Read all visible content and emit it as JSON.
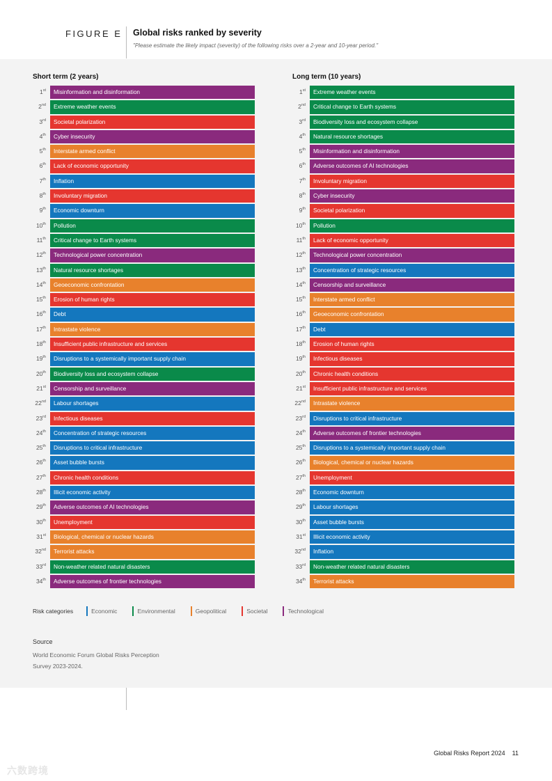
{
  "header": {
    "figure_label": "FIGURE E",
    "title": "Global risks ranked by severity",
    "subtitle": "\"Please estimate the likely impact (severity) of the following risks over a 2-year and 10-year period.\""
  },
  "colors": {
    "economic": "#1477be",
    "environmental": "#0a8a4a",
    "geopolitical": "#e8812c",
    "societal": "#e5362f",
    "technological": "#8a2a7d"
  },
  "short_term": {
    "title": "Short term (2 years)",
    "items": [
      {
        "rank": "1",
        "suffix": "st",
        "label": "Misinformation and disinformation",
        "category": "technological"
      },
      {
        "rank": "2",
        "suffix": "nd",
        "label": "Extreme weather events",
        "category": "environmental"
      },
      {
        "rank": "3",
        "suffix": "rd",
        "label": "Societal polarization",
        "category": "societal"
      },
      {
        "rank": "4",
        "suffix": "th",
        "label": "Cyber insecurity",
        "category": "technological"
      },
      {
        "rank": "5",
        "suffix": "th",
        "label": "Interstate armed conflict",
        "category": "geopolitical"
      },
      {
        "rank": "6",
        "suffix": "th",
        "label": "Lack of economic opportunity",
        "category": "societal"
      },
      {
        "rank": "7",
        "suffix": "th",
        "label": "Inflation",
        "category": "economic"
      },
      {
        "rank": "8",
        "suffix": "th",
        "label": "Involuntary migration",
        "category": "societal"
      },
      {
        "rank": "9",
        "suffix": "th",
        "label": "Economic downturn",
        "category": "economic"
      },
      {
        "rank": "10",
        "suffix": "th",
        "label": "Pollution",
        "category": "environmental"
      },
      {
        "rank": "11",
        "suffix": "th",
        "label": "Critical change to Earth systems",
        "category": "environmental"
      },
      {
        "rank": "12",
        "suffix": "th",
        "label": "Technological power concentration",
        "category": "technological"
      },
      {
        "rank": "13",
        "suffix": "th",
        "label": "Natural resource shortages",
        "category": "environmental"
      },
      {
        "rank": "14",
        "suffix": "th",
        "label": "Geoeconomic confrontation",
        "category": "geopolitical"
      },
      {
        "rank": "15",
        "suffix": "th",
        "label": "Erosion of human rights",
        "category": "societal"
      },
      {
        "rank": "16",
        "suffix": "th",
        "label": "Debt",
        "category": "economic"
      },
      {
        "rank": "17",
        "suffix": "th",
        "label": "Intrastate violence",
        "category": "geopolitical"
      },
      {
        "rank": "18",
        "suffix": "th",
        "label": "Insufficient public infrastructure and services",
        "category": "societal"
      },
      {
        "rank": "19",
        "suffix": "th",
        "label": "Disruptions to a systemically important supply chain",
        "category": "economic"
      },
      {
        "rank": "20",
        "suffix": "th",
        "label": "Biodiversity loss and ecosystem collapse",
        "category": "environmental"
      },
      {
        "rank": "21",
        "suffix": "st",
        "label": "Censorship and surveillance",
        "category": "technological"
      },
      {
        "rank": "22",
        "suffix": "nd",
        "label": "Labour shortages",
        "category": "economic"
      },
      {
        "rank": "23",
        "suffix": "rd",
        "label": "Infectious diseases",
        "category": "societal"
      },
      {
        "rank": "24",
        "suffix": "th",
        "label": "Concentration of strategic resources",
        "category": "economic"
      },
      {
        "rank": "25",
        "suffix": "th",
        "label": "Disruptions to critical infrastructure",
        "category": "economic"
      },
      {
        "rank": "26",
        "suffix": "th",
        "label": "Asset bubble bursts",
        "category": "economic"
      },
      {
        "rank": "27",
        "suffix": "th",
        "label": "Chronic health conditions",
        "category": "societal"
      },
      {
        "rank": "28",
        "suffix": "th",
        "label": "Illicit economic activity",
        "category": "economic"
      },
      {
        "rank": "29",
        "suffix": "th",
        "label": "Adverse outcomes of AI technologies",
        "category": "technological"
      },
      {
        "rank": "30",
        "suffix": "th",
        "label": "Unemployment",
        "category": "societal"
      },
      {
        "rank": "31",
        "suffix": "st",
        "label": "Biological, chemical or nuclear hazards",
        "category": "geopolitical"
      },
      {
        "rank": "32",
        "suffix": "nd",
        "label": "Terrorist attacks",
        "category": "geopolitical"
      },
      {
        "rank": "33",
        "suffix": "rd",
        "label": "Non-weather related natural disasters",
        "category": "environmental"
      },
      {
        "rank": "34",
        "suffix": "th",
        "label": "Adverse outcomes of frontier technologies",
        "category": "technological"
      }
    ]
  },
  "long_term": {
    "title": "Long term (10 years)",
    "items": [
      {
        "rank": "1",
        "suffix": "st",
        "label": "Extreme weather events",
        "category": "environmental"
      },
      {
        "rank": "2",
        "suffix": "nd",
        "label": "Critical change to Earth systems",
        "category": "environmental"
      },
      {
        "rank": "3",
        "suffix": "rd",
        "label": "Biodiversity loss and ecosystem collapse",
        "category": "environmental"
      },
      {
        "rank": "4",
        "suffix": "th",
        "label": "Natural resource shortages",
        "category": "environmental"
      },
      {
        "rank": "5",
        "suffix": "th",
        "label": "Misinformation and disinformation",
        "category": "technological"
      },
      {
        "rank": "6",
        "suffix": "th",
        "label": "Adverse outcomes of AI technologies",
        "category": "technological"
      },
      {
        "rank": "7",
        "suffix": "th",
        "label": "Involuntary migration",
        "category": "societal"
      },
      {
        "rank": "8",
        "suffix": "th",
        "label": "Cyber insecurity",
        "category": "technological"
      },
      {
        "rank": "9",
        "suffix": "th",
        "label": "Societal polarization",
        "category": "societal"
      },
      {
        "rank": "10",
        "suffix": "th",
        "label": "Pollution",
        "category": "environmental"
      },
      {
        "rank": "11",
        "suffix": "th",
        "label": "Lack of economic opportunity",
        "category": "societal"
      },
      {
        "rank": "12",
        "suffix": "th",
        "label": "Technological power concentration",
        "category": "technological"
      },
      {
        "rank": "13",
        "suffix": "th",
        "label": "Concentration of strategic resources",
        "category": "economic"
      },
      {
        "rank": "14",
        "suffix": "th",
        "label": "Censorship and surveillance",
        "category": "technological"
      },
      {
        "rank": "15",
        "suffix": "th",
        "label": "Interstate armed conflict",
        "category": "geopolitical"
      },
      {
        "rank": "16",
        "suffix": "th",
        "label": "Geoeconomic confrontation",
        "category": "geopolitical"
      },
      {
        "rank": "17",
        "suffix": "th",
        "label": "Debt",
        "category": "economic"
      },
      {
        "rank": "18",
        "suffix": "th",
        "label": "Erosion of human rights",
        "category": "societal"
      },
      {
        "rank": "19",
        "suffix": "th",
        "label": "Infectious diseases",
        "category": "societal"
      },
      {
        "rank": "20",
        "suffix": "th",
        "label": "Chronic health conditions",
        "category": "societal"
      },
      {
        "rank": "21",
        "suffix": "st",
        "label": "Insufficient public infrastructure and services",
        "category": "societal"
      },
      {
        "rank": "22",
        "suffix": "nd",
        "label": "Intrastate violence",
        "category": "geopolitical"
      },
      {
        "rank": "23",
        "suffix": "rd",
        "label": "Disruptions to critical infrastructure",
        "category": "economic"
      },
      {
        "rank": "24",
        "suffix": "th",
        "label": "Adverse outcomes of frontier technologies",
        "category": "technological"
      },
      {
        "rank": "25",
        "suffix": "th",
        "label": "Disruptions to a systemically important supply chain",
        "category": "economic"
      },
      {
        "rank": "26",
        "suffix": "th",
        "label": "Biological, chemical or nuclear hazards",
        "category": "geopolitical"
      },
      {
        "rank": "27",
        "suffix": "th",
        "label": "Unemployment",
        "category": "societal"
      },
      {
        "rank": "28",
        "suffix": "th",
        "label": "Economic downturn",
        "category": "economic"
      },
      {
        "rank": "29",
        "suffix": "th",
        "label": "Labour shortages",
        "category": "economic"
      },
      {
        "rank": "30",
        "suffix": "th",
        "label": "Asset bubble bursts",
        "category": "economic"
      },
      {
        "rank": "31",
        "suffix": "st",
        "label": "Illicit economic activity",
        "category": "economic"
      },
      {
        "rank": "32",
        "suffix": "nd",
        "label": "Inflation",
        "category": "economic"
      },
      {
        "rank": "33",
        "suffix": "rd",
        "label": "Non-weather related natural disasters",
        "category": "environmental"
      },
      {
        "rank": "34",
        "suffix": "th",
        "label": "Terrorist attacks",
        "category": "geopolitical"
      }
    ]
  },
  "legend": {
    "title": "Risk categories",
    "items": [
      {
        "key": "economic",
        "label": "Economic"
      },
      {
        "key": "environmental",
        "label": "Environmental"
      },
      {
        "key": "geopolitical",
        "label": "Geopolitical"
      },
      {
        "key": "societal",
        "label": "Societal"
      },
      {
        "key": "technological",
        "label": "Technological"
      }
    ]
  },
  "source": {
    "label": "Source",
    "text": "World Economic Forum Global Risks Perception Survey 2023-2024."
  },
  "footer": {
    "report": "Global Risks Report 2024",
    "page": "11"
  },
  "watermark": "六数跨境"
}
